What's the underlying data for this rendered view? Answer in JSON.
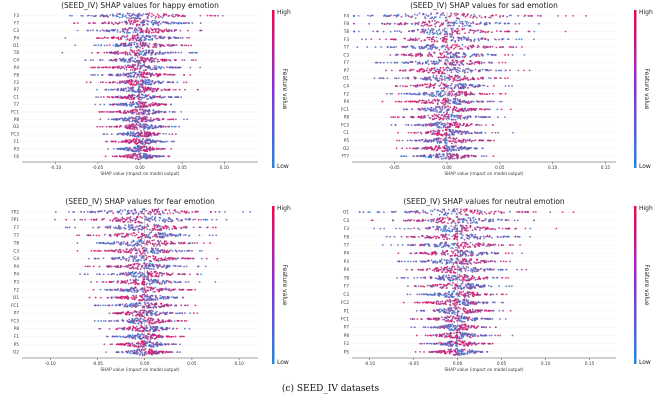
{
  "figure": {
    "caption": "(c) SEED_IV datasets",
    "colors": {
      "low": "#1e88e5",
      "high": "#ff0052"
    }
  },
  "chart_data": [
    {
      "type": "scatter",
      "title": "(SEED_IV) SHAP values for happy emotion",
      "xlabel": "SHAP value (impact on model output)",
      "xlim": [
        -0.14,
        0.14
      ],
      "xticks": [
        -0.1,
        -0.05,
        0.0,
        0.05,
        0.1
      ],
      "xtick_labels": [
        "-0.10",
        "-0.05",
        "0.00",
        "0.05",
        "0.10"
      ],
      "features": [
        "F3",
        "F7",
        "C3",
        "P4",
        "O1",
        "T8",
        "C4",
        "P4",
        "F8",
        "F2",
        "P7",
        "C1",
        "T7",
        "FC1",
        "P8",
        "O2",
        "FC3",
        "F1",
        "P3",
        "F6"
      ],
      "spread": [
        0.1,
        0.085,
        0.08,
        0.075,
        0.07,
        0.07,
        0.065,
        0.065,
        0.06,
        0.06,
        0.055,
        0.055,
        0.05,
        0.05,
        0.05,
        0.048,
        0.045,
        0.045,
        0.04,
        0.04
      ],
      "colorbar": {
        "title": "Feature value",
        "high": "High",
        "low": "Low"
      }
    },
    {
      "type": "scatter",
      "title": "(SEED_IV) SHAP values for sad emotion",
      "xlabel": "SHAP value (impact on model output)",
      "xlim": [
        -0.09,
        0.16
      ],
      "xticks": [
        -0.05,
        0.0,
        0.05,
        0.1,
        0.15
      ],
      "xtick_labels": [
        "-0.05",
        "0.00",
        "0.05",
        "0.10",
        "0.15"
      ],
      "features": [
        "F4",
        "F8",
        "T8",
        "F3",
        "T7",
        "C3",
        "F7",
        "P7",
        "O1",
        "C4",
        "F2",
        "P4",
        "FC1",
        "P8",
        "FC3",
        "C1",
        "P5",
        "O2",
        "FT7"
      ],
      "spread": [
        0.12,
        0.1,
        0.09,
        0.085,
        0.08,
        0.075,
        0.07,
        0.07,
        0.065,
        0.065,
        0.06,
        0.06,
        0.055,
        0.055,
        0.05,
        0.05,
        0.05,
        0.045,
        0.045
      ],
      "colorbar": {
        "title": "Feature value",
        "high": "High",
        "low": "Low"
      }
    },
    {
      "type": "scatter",
      "title": "(SEED_IV) SHAP values for fear emotion",
      "xlabel": "SHAP value (impact on model output)",
      "xlim": [
        -0.13,
        0.12
      ],
      "xticks": [
        -0.1,
        -0.05,
        0.0,
        0.05,
        0.1
      ],
      "xtick_labels": [
        "-0.10",
        "-0.05",
        "0.00",
        "0.05",
        "0.10"
      ],
      "features": [
        "FP2",
        "FP1",
        "F7",
        "T7",
        "T8",
        "C3",
        "C4",
        "P4",
        "P4",
        "P3",
        "F2",
        "O1",
        "FC1",
        "P7",
        "FC3",
        "P8",
        "F1",
        "P5",
        "O2"
      ],
      "spread": [
        0.1,
        0.09,
        0.085,
        0.08,
        0.075,
        0.07,
        0.07,
        0.065,
        0.065,
        0.06,
        0.06,
        0.055,
        0.055,
        0.05,
        0.05,
        0.05,
        0.045,
        0.045,
        0.04
      ],
      "colorbar": {
        "title": "Feature value",
        "high": "High",
        "low": "Low"
      }
    },
    {
      "type": "scatter",
      "title": "(SEED_IV) SHAP values for neutral emotion",
      "xlabel": "SHAP value (impact on model output)",
      "xlim": [
        -0.12,
        0.18
      ],
      "xticks": [
        -0.1,
        -0.05,
        0.0,
        0.05,
        0.1,
        0.15
      ],
      "xtick_labels": [
        "-0.10",
        "-0.05",
        "0.00",
        "0.05",
        "0.10",
        "0.15"
      ],
      "features": [
        "O1",
        "C3",
        "F3",
        "F8",
        "T7",
        "P4",
        "P3",
        "P4",
        "T8",
        "F7",
        "C3",
        "FC2",
        "P1",
        "FC1",
        "P7",
        "P8",
        "F2",
        "P5"
      ],
      "spread": [
        0.12,
        0.1,
        0.09,
        0.085,
        0.08,
        0.075,
        0.07,
        0.07,
        0.065,
        0.065,
        0.06,
        0.06,
        0.055,
        0.055,
        0.05,
        0.05,
        0.045,
        0.045
      ],
      "colorbar": {
        "title": "Feature value",
        "high": "High",
        "low": "Low"
      }
    }
  ]
}
